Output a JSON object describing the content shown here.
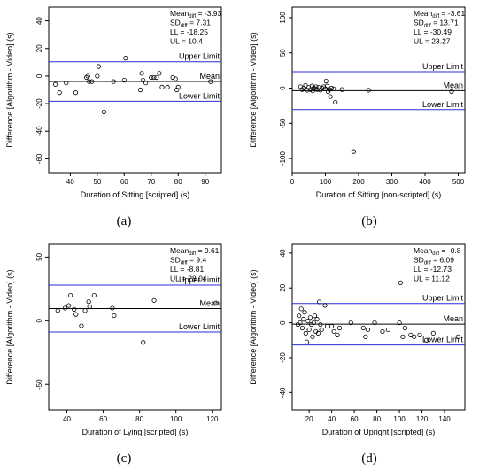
{
  "chart_data": [
    {
      "type": "scatter",
      "panel_label": "(a)",
      "xlabel": "Duration of Sitting [scripted] (s)",
      "ylabel": "Difference [Algorithm - Video] (s)",
      "xlim": [
        32,
        96
      ],
      "ylim": [
        -70,
        50
      ],
      "xticks": [
        40,
        50,
        60,
        70,
        80,
        90
      ],
      "yticks": [
        -60,
        -40,
        -20,
        0,
        20,
        40
      ],
      "stats": [
        {
          "label": "Mean",
          "sub": "diff",
          "value": "= -3.93"
        },
        {
          "label": "SD",
          "sub": "diff",
          "value": "= 7.31"
        },
        {
          "label": "LL",
          "sub": "",
          "value": "= -18.25"
        },
        {
          "label": "UL",
          "sub": "",
          "value": "= 10.4"
        }
      ],
      "lines": [
        {
          "name": "Upper Limit",
          "y": 10.4,
          "color": "#2b2bd9"
        },
        {
          "name": "Mean",
          "y": -3.93,
          "color": "#000000"
        },
        {
          "name": "Lower Limit",
          "y": -18.25,
          "color": "#2b2bd9"
        }
      ],
      "points": [
        [
          34.5,
          -6
        ],
        [
          36,
          -12
        ],
        [
          38.5,
          -5
        ],
        [
          42,
          -12
        ],
        [
          46,
          -1
        ],
        [
          46.5,
          0
        ],
        [
          47,
          -4
        ],
        [
          48,
          -4
        ],
        [
          50,
          0
        ],
        [
          50.5,
          7
        ],
        [
          52.5,
          -26
        ],
        [
          56,
          -4
        ],
        [
          60,
          -3
        ],
        [
          60.5,
          13
        ],
        [
          66,
          -10
        ],
        [
          66.5,
          2
        ],
        [
          67,
          -3
        ],
        [
          68,
          -5
        ],
        [
          70,
          -1
        ],
        [
          71,
          -1
        ],
        [
          72,
          -1
        ],
        [
          73,
          2
        ],
        [
          74,
          -8
        ],
        [
          76,
          -8
        ],
        [
          78,
          -1
        ],
        [
          79,
          -2
        ],
        [
          79.5,
          -10
        ],
        [
          80,
          -8
        ],
        [
          92,
          -4
        ]
      ]
    },
    {
      "type": "scatter",
      "panel_label": "(b)",
      "xlabel": "Duration of Sitting [non-scripted] (s)",
      "ylabel": "Difference [Algorithm - Video] (s)",
      "xlim": [
        0,
        520
      ],
      "ylim": [
        -120,
        115
      ],
      "xticks": [
        0,
        100,
        200,
        300,
        400,
        500
      ],
      "yticks": [
        -100,
        -50,
        0,
        50,
        100
      ],
      "stats": [
        {
          "label": "Mean",
          "sub": "diff",
          "value": "= -3.61"
        },
        {
          "label": "SD",
          "sub": "diff",
          "value": "= 13.71"
        },
        {
          "label": "LL",
          "sub": "",
          "value": "= -30.49"
        },
        {
          "label": "UL",
          "sub": "",
          "value": "= 23.27"
        }
      ],
      "lines": [
        {
          "name": "Upper Limit",
          "y": 23.27,
          "color": "#2b2bd9"
        },
        {
          "name": "Mean",
          "y": -3.61,
          "color": "#000000"
        },
        {
          "name": "Lower Limit",
          "y": -30.49,
          "color": "#2b2bd9"
        }
      ],
      "points": [
        [
          25,
          2
        ],
        [
          30,
          -2
        ],
        [
          35,
          0
        ],
        [
          40,
          4
        ],
        [
          45,
          -3
        ],
        [
          50,
          1
        ],
        [
          55,
          -2
        ],
        [
          60,
          3
        ],
        [
          62,
          -4
        ],
        [
          65,
          0
        ],
        [
          70,
          -1
        ],
        [
          72,
          2
        ],
        [
          75,
          -2
        ],
        [
          80,
          1
        ],
        [
          85,
          -3
        ],
        [
          90,
          0
        ],
        [
          95,
          2
        ],
        [
          100,
          -1
        ],
        [
          102,
          10
        ],
        [
          105,
          3
        ],
        [
          108,
          -5
        ],
        [
          112,
          -2
        ],
        [
          115,
          -12
        ],
        [
          118,
          0
        ],
        [
          125,
          -1
        ],
        [
          130,
          -20
        ],
        [
          150,
          -2
        ],
        [
          185,
          -90
        ],
        [
          230,
          -3
        ],
        [
          480,
          -5
        ]
      ]
    },
    {
      "type": "scatter",
      "panel_label": "(c)",
      "xlabel": "Duration of Lying [scripted] (s)",
      "ylabel": "Difference [Algorithm - Video] (s)",
      "xlim": [
        30,
        125
      ],
      "ylim": [
        -70,
        60
      ],
      "xticks": [
        40,
        60,
        80,
        100,
        120
      ],
      "yticks": [
        -50,
        0,
        50
      ],
      "stats": [
        {
          "label": "Mean",
          "sub": "diff",
          "value": "= 9.61"
        },
        {
          "label": "SD",
          "sub": "diff",
          "value": "= 9.4"
        },
        {
          "label": "LL",
          "sub": "",
          "value": "= -8.81"
        },
        {
          "label": "UL",
          "sub": "",
          "value": "= 28.04"
        }
      ],
      "lines": [
        {
          "name": "Upper Limit",
          "y": 28.04,
          "color": "#2b2bd9"
        },
        {
          "name": "Mean",
          "y": 9.61,
          "color": "#000000"
        },
        {
          "name": "Lower Limit",
          "y": -8.81,
          "color": "#2b2bd9"
        }
      ],
      "points": [
        [
          35,
          8
        ],
        [
          39,
          10
        ],
        [
          41,
          12
        ],
        [
          42,
          20
        ],
        [
          44,
          9
        ],
        [
          45,
          5
        ],
        [
          48,
          -4
        ],
        [
          50,
          8
        ],
        [
          52,
          15
        ],
        [
          52.5,
          11
        ],
        [
          55,
          20
        ],
        [
          65,
          10
        ],
        [
          66,
          4
        ],
        [
          82,
          -17
        ],
        [
          88,
          16
        ],
        [
          122,
          14
        ]
      ]
    },
    {
      "type": "scatter",
      "panel_label": "(d)",
      "xlabel": "Duration of Upright [scripted] (s)",
      "ylabel": "Difference [Algorithm - Video] (s)",
      "xlim": [
        5,
        158
      ],
      "ylim": [
        -50,
        45
      ],
      "xticks": [
        20,
        40,
        60,
        80,
        100,
        120,
        140
      ],
      "yticks": [
        -40,
        -20,
        0,
        20,
        40
      ],
      "stats": [
        {
          "label": "Mean",
          "sub": "diff",
          "value": "= -0.8"
        },
        {
          "label": "SD",
          "sub": "diff",
          "value": "= 6.09"
        },
        {
          "label": "LL",
          "sub": "",
          "value": "= -12.73"
        },
        {
          "label": "UL",
          "sub": "",
          "value": "= 11.12"
        }
      ],
      "lines": [
        {
          "name": "Upper Limit",
          "y": 11.12,
          "color": "#2b2bd9"
        },
        {
          "name": "Mean",
          "y": -0.8,
          "color": "#000000"
        },
        {
          "name": "Lower Limit",
          "y": -12.73,
          "color": "#2b2bd9"
        }
      ],
      "points": [
        [
          10,
          -1
        ],
        [
          11,
          4
        ],
        [
          12,
          0
        ],
        [
          13,
          8
        ],
        [
          14,
          -3
        ],
        [
          15,
          2
        ],
        [
          16,
          6
        ],
        [
          17,
          -6
        ],
        [
          18,
          -11
        ],
        [
          19,
          1
        ],
        [
          20,
          -4
        ],
        [
          21,
          3
        ],
        [
          22,
          -1
        ],
        [
          23,
          -8
        ],
        [
          24,
          0
        ],
        [
          25,
          4
        ],
        [
          26,
          -5
        ],
        [
          27,
          2
        ],
        [
          28,
          -6
        ],
        [
          29,
          12
        ],
        [
          30,
          -1
        ],
        [
          31,
          -4
        ],
        [
          34,
          10
        ],
        [
          36,
          -2
        ],
        [
          40,
          -2
        ],
        [
          42,
          -5
        ],
        [
          45,
          -7
        ],
        [
          47,
          -3
        ],
        [
          57,
          0
        ],
        [
          68,
          -3
        ],
        [
          70,
          -8
        ],
        [
          72,
          -4
        ],
        [
          78,
          0
        ],
        [
          85,
          -5
        ],
        [
          90,
          -4
        ],
        [
          100,
          0
        ],
        [
          101,
          23
        ],
        [
          103,
          -8
        ],
        [
          105,
          -3
        ],
        [
          110,
          -7
        ],
        [
          113,
          -8
        ],
        [
          118,
          -7
        ],
        [
          124,
          -10
        ],
        [
          130,
          -6
        ],
        [
          152,
          -8
        ]
      ]
    }
  ]
}
